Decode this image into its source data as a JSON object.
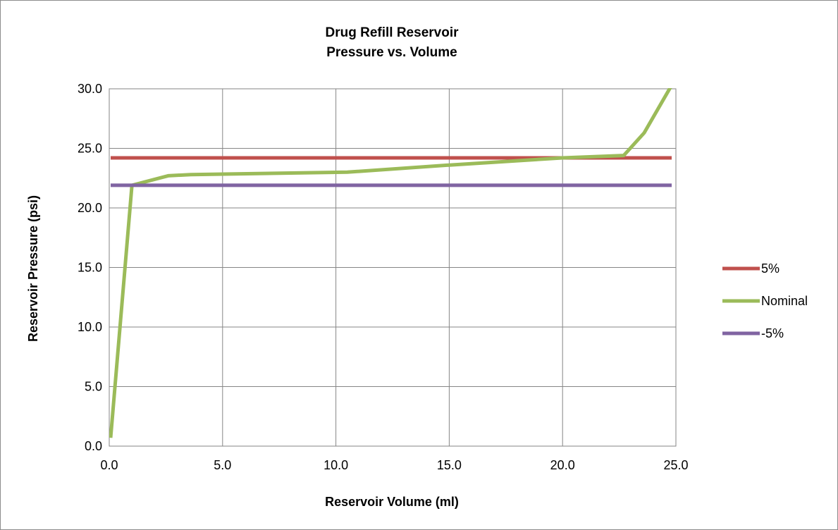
{
  "chart_data": {
    "type": "line",
    "title": [
      "Drug Refill Reservoir",
      "Pressure vs. Volume"
    ],
    "xlabel": "Reservoir Volume (ml)",
    "ylabel": "Reservoir Pressure (psi)",
    "xlim": [
      0,
      25
    ],
    "ylim": [
      0,
      30
    ],
    "xticks": [
      0,
      5,
      10,
      15,
      20,
      25
    ],
    "yticks": [
      0,
      5,
      10,
      15,
      20,
      25,
      30
    ],
    "xtick_labels": [
      "0.0",
      "5.0",
      "10.0",
      "15.0",
      "20.0",
      "25.0"
    ],
    "ytick_labels": [
      "0.0",
      "5.0",
      "10.0",
      "15.0",
      "20.0",
      "25.0",
      "30.0"
    ],
    "grid": true,
    "legend_position": "right",
    "series": [
      {
        "name": "5%",
        "color": "#c0504d",
        "x": [
          0,
          25
        ],
        "y": [
          24.2,
          24.2
        ]
      },
      {
        "name": "Nominal",
        "color": "#9bbb59",
        "x": [
          0,
          1.0,
          2.6,
          3.6,
          10.5,
          15.0,
          20.0,
          22.7,
          23.6,
          25.0
        ],
        "y": [
          0.7,
          21.9,
          22.7,
          22.8,
          23.0,
          23.6,
          24.2,
          24.4,
          26.3,
          30.3
        ]
      },
      {
        "name": "-5%",
        "color": "#8064a2",
        "x": [
          0,
          25
        ],
        "y": [
          21.9,
          21.9
        ]
      }
    ]
  }
}
